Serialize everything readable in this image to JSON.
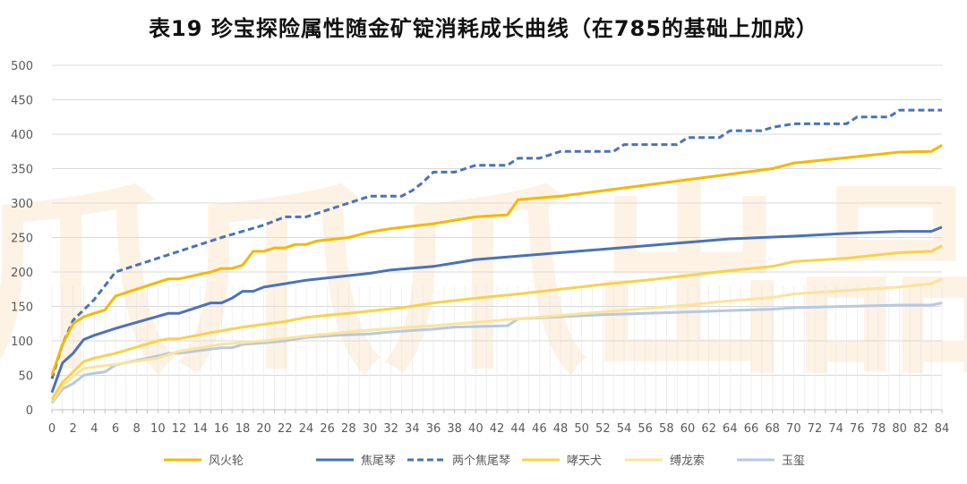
{
  "title": "表19 珍宝探险属性随金矿锭消耗成长曲线（在785的基础上加成）",
  "watermark": "爪爪爪出品",
  "colors": {
    "fenghuolun": "#f5b800",
    "jiaoweiqin": "#4a72b8",
    "liangge": "#4a72b8",
    "xiaotianquan": "#f8d24a",
    "fulongsuo": "#fbe49a",
    "yuxi": "#b6c8e3",
    "grid": "#d9d9d9",
    "axis": "#bfbfbf",
    "watermark": "#f6a23a"
  },
  "chart_data": {
    "type": "line",
    "title": "表19 珍宝探险属性随金矿锭消耗成长曲线（在785的基础上加成）",
    "xlabel": "",
    "ylabel": "",
    "xlim": [
      0,
      84
    ],
    "ylim": [
      0,
      500
    ],
    "x_ticks": [
      0,
      2,
      4,
      6,
      8,
      10,
      12,
      14,
      16,
      18,
      20,
      22,
      24,
      26,
      28,
      30,
      32,
      34,
      36,
      38,
      40,
      42,
      44,
      46,
      48,
      50,
      52,
      54,
      56,
      58,
      60,
      62,
      64,
      66,
      68,
      70,
      72,
      74,
      76,
      78,
      80,
      82,
      84
    ],
    "y_ticks": [
      0,
      50,
      100,
      150,
      200,
      250,
      300,
      350,
      400,
      450,
      500
    ],
    "grid": "horizontal",
    "legend": "bottom",
    "series": [
      {
        "name": "风火轮",
        "style": "solid",
        "points": [
          [
            0,
            50
          ],
          [
            1,
            95
          ],
          [
            2,
            125
          ],
          [
            3,
            135
          ],
          [
            4,
            140
          ],
          [
            5,
            145
          ],
          [
            6,
            165
          ],
          [
            10,
            185
          ],
          [
            11,
            190
          ],
          [
            12,
            190
          ],
          [
            15,
            200
          ],
          [
            16,
            205
          ],
          [
            17,
            205
          ],
          [
            18,
            210
          ],
          [
            19,
            230
          ],
          [
            20,
            230
          ],
          [
            21,
            235
          ],
          [
            22,
            235
          ],
          [
            23,
            240
          ],
          [
            24,
            240
          ],
          [
            25,
            245
          ],
          [
            28,
            250
          ],
          [
            30,
            258
          ],
          [
            32,
            263
          ],
          [
            36,
            270
          ],
          [
            38,
            275
          ],
          [
            40,
            280
          ],
          [
            43,
            283
          ],
          [
            44,
            305
          ],
          [
            48,
            310
          ],
          [
            52,
            318
          ],
          [
            56,
            326
          ],
          [
            60,
            334
          ],
          [
            64,
            342
          ],
          [
            68,
            350
          ],
          [
            70,
            358
          ],
          [
            75,
            366
          ],
          [
            80,
            374
          ],
          [
            83,
            375
          ],
          [
            84,
            384
          ]
        ]
      },
      {
        "name": "焦尾琴",
        "style": "solid",
        "points": [
          [
            0,
            25
          ],
          [
            1,
            68
          ],
          [
            2,
            82
          ],
          [
            3,
            102
          ],
          [
            4,
            108
          ],
          [
            6,
            118
          ],
          [
            11,
            140
          ],
          [
            12,
            140
          ],
          [
            15,
            155
          ],
          [
            16,
            155
          ],
          [
            17,
            162
          ],
          [
            18,
            172
          ],
          [
            19,
            172
          ],
          [
            20,
            178
          ],
          [
            22,
            183
          ],
          [
            24,
            188
          ],
          [
            27,
            193
          ],
          [
            30,
            198
          ],
          [
            32,
            203
          ],
          [
            36,
            208
          ],
          [
            38,
            213
          ],
          [
            40,
            218
          ],
          [
            44,
            223
          ],
          [
            48,
            228
          ],
          [
            52,
            233
          ],
          [
            56,
            238
          ],
          [
            60,
            243
          ],
          [
            64,
            248
          ],
          [
            70,
            252
          ],
          [
            75,
            256
          ],
          [
            80,
            259
          ],
          [
            83,
            259
          ],
          [
            84,
            265
          ]
        ]
      },
      {
        "name": "两个焦尾琴",
        "style": "dashed",
        "points": [
          [
            0,
            45
          ],
          [
            1,
            95
          ],
          [
            2,
            130
          ],
          [
            3,
            145
          ],
          [
            4,
            160
          ],
          [
            5,
            180
          ],
          [
            6,
            200
          ],
          [
            10,
            220
          ],
          [
            12,
            230
          ],
          [
            16,
            250
          ],
          [
            20,
            268
          ],
          [
            22,
            280
          ],
          [
            24,
            280
          ],
          [
            26,
            290
          ],
          [
            30,
            310
          ],
          [
            33,
            310
          ],
          [
            34,
            318
          ],
          [
            35,
            330
          ],
          [
            36,
            345
          ],
          [
            38,
            345
          ],
          [
            40,
            355
          ],
          [
            43,
            355
          ],
          [
            44,
            365
          ],
          [
            46,
            365
          ],
          [
            48,
            375
          ],
          [
            53,
            375
          ],
          [
            54,
            385
          ],
          [
            59,
            385
          ],
          [
            60,
            395
          ],
          [
            63,
            395
          ],
          [
            64,
            405
          ],
          [
            67,
            405
          ],
          [
            68,
            410
          ],
          [
            70,
            415
          ],
          [
            75,
            415
          ],
          [
            76,
            425
          ],
          [
            79,
            425
          ],
          [
            80,
            435
          ],
          [
            84,
            435
          ]
        ]
      },
      {
        "name": "哮天犬",
        "style": "solid",
        "points": [
          [
            0,
            15
          ],
          [
            1,
            40
          ],
          [
            2,
            55
          ],
          [
            3,
            70
          ],
          [
            4,
            75
          ],
          [
            6,
            82
          ],
          [
            10,
            100
          ],
          [
            11,
            103
          ],
          [
            12,
            103
          ],
          [
            15,
            112
          ],
          [
            18,
            120
          ],
          [
            22,
            128
          ],
          [
            24,
            134
          ],
          [
            28,
            140
          ],
          [
            31,
            145
          ],
          [
            33,
            148
          ],
          [
            36,
            155
          ],
          [
            40,
            162
          ],
          [
            44,
            168
          ],
          [
            48,
            175
          ],
          [
            52,
            182
          ],
          [
            56,
            188
          ],
          [
            60,
            195
          ],
          [
            64,
            202
          ],
          [
            68,
            208
          ],
          [
            70,
            215
          ],
          [
            75,
            220
          ],
          [
            80,
            228
          ],
          [
            83,
            230
          ],
          [
            84,
            238
          ]
        ]
      },
      {
        "name": "缚龙索",
        "style": "solid",
        "points": [
          [
            0,
            12
          ],
          [
            1,
            35
          ],
          [
            2,
            48
          ],
          [
            3,
            60
          ],
          [
            4,
            62
          ],
          [
            6,
            66
          ],
          [
            10,
            75
          ],
          [
            12,
            85
          ],
          [
            16,
            95
          ],
          [
            20,
            100
          ],
          [
            24,
            107
          ],
          [
            28,
            113
          ],
          [
            32,
            118
          ],
          [
            36,
            122
          ],
          [
            40,
            127
          ],
          [
            44,
            132
          ],
          [
            48,
            137
          ],
          [
            52,
            142
          ],
          [
            56,
            147
          ],
          [
            60,
            152
          ],
          [
            64,
            158
          ],
          [
            68,
            163
          ],
          [
            70,
            168
          ],
          [
            75,
            173
          ],
          [
            80,
            178
          ],
          [
            83,
            183
          ],
          [
            84,
            190
          ]
        ]
      },
      {
        "name": "玉玺",
        "style": "solid",
        "points": [
          [
            0,
            10
          ],
          [
            1,
            30
          ],
          [
            2,
            38
          ],
          [
            3,
            50
          ],
          [
            4,
            53
          ],
          [
            5,
            55
          ],
          [
            6,
            65
          ],
          [
            10,
            78
          ],
          [
            11,
            82
          ],
          [
            12,
            82
          ],
          [
            15,
            88
          ],
          [
            16,
            90
          ],
          [
            17,
            90
          ],
          [
            18,
            95
          ],
          [
            20,
            97
          ],
          [
            22,
            100
          ],
          [
            24,
            105
          ],
          [
            27,
            108
          ],
          [
            30,
            110
          ],
          [
            32,
            113
          ],
          [
            36,
            117
          ],
          [
            38,
            120
          ],
          [
            43,
            122
          ],
          [
            44,
            132
          ],
          [
            48,
            135
          ],
          [
            52,
            138
          ],
          [
            56,
            140
          ],
          [
            60,
            142
          ],
          [
            64,
            144
          ],
          [
            68,
            146
          ],
          [
            70,
            148
          ],
          [
            75,
            150
          ],
          [
            80,
            152
          ],
          [
            83,
            152
          ],
          [
            84,
            155
          ]
        ]
      }
    ]
  }
}
